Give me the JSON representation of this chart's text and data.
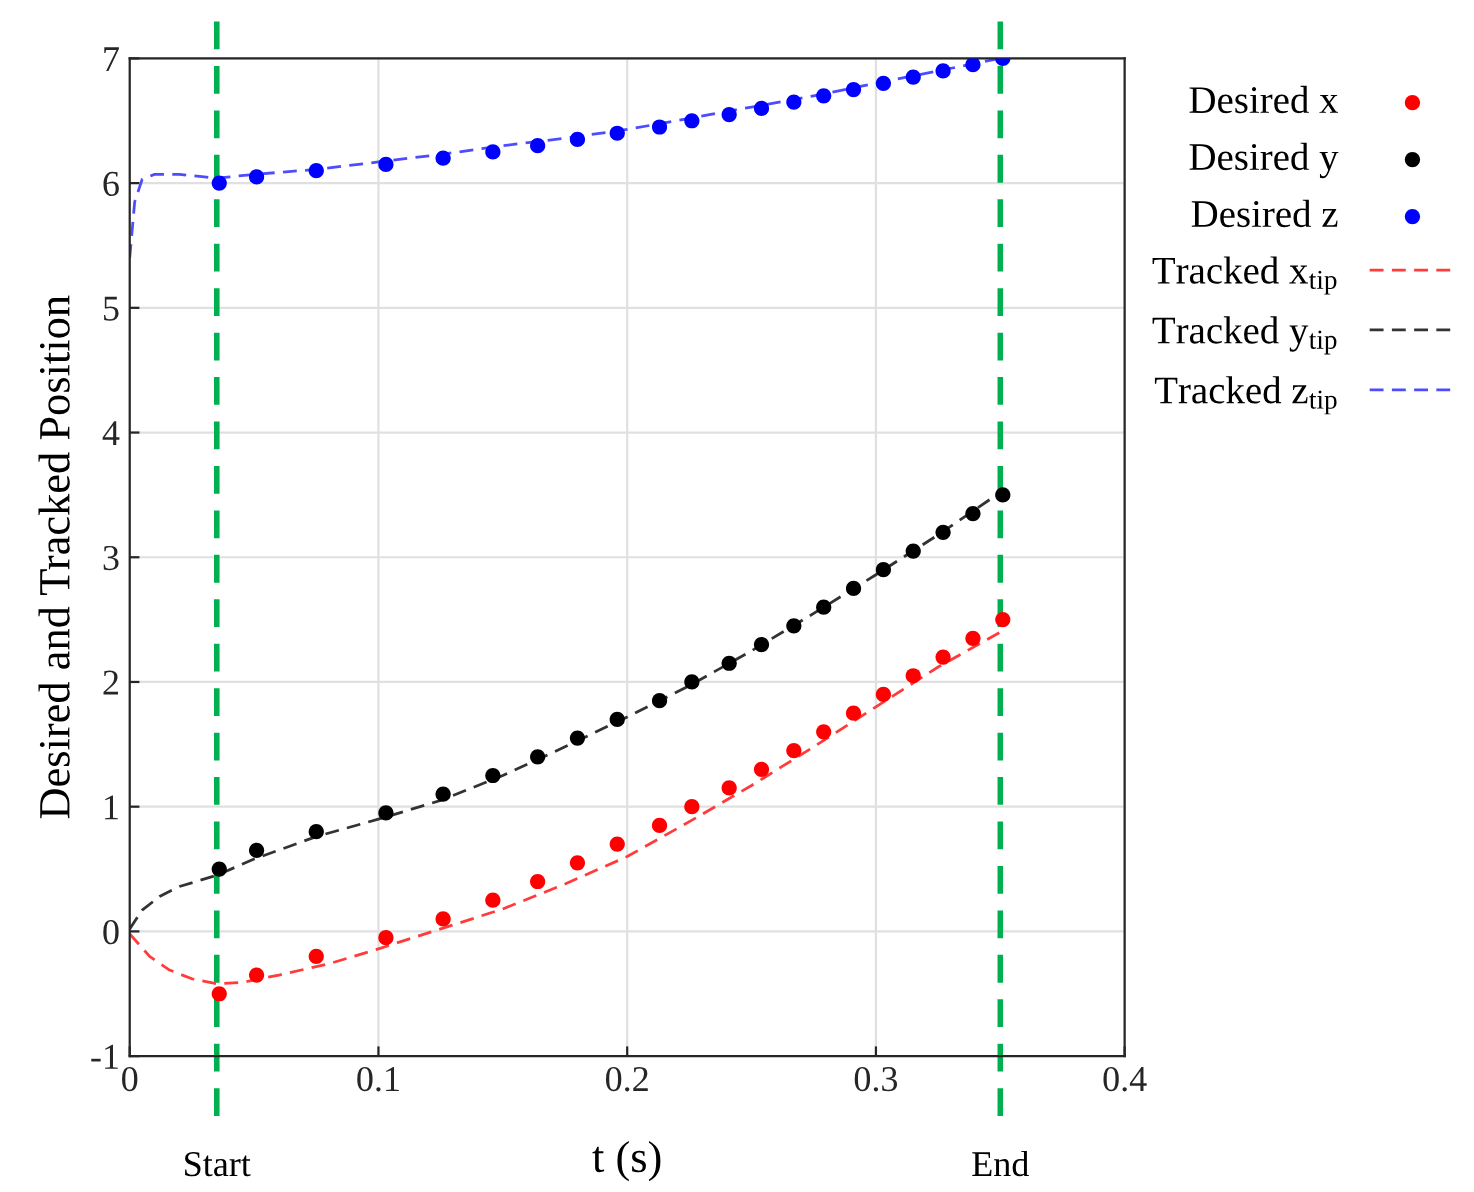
{
  "chart_data": {
    "type": "line",
    "xlabel": "t (s)",
    "ylabel": "Desired and Tracked Position",
    "xlim": [
      0,
      0.4
    ],
    "xticks": [
      0,
      0.1,
      0.2,
      0.3,
      0.4
    ],
    "ylim": [
      -1,
      7
    ],
    "yticks": [
      -1,
      0,
      1,
      2,
      3,
      4,
      5,
      6,
      7
    ],
    "grid": true,
    "legend": "right",
    "ref_lines": [
      {
        "axis": "x",
        "value": 0.035,
        "label": "Start",
        "color": "#00b050",
        "line_style": "dashed"
      },
      {
        "axis": "x",
        "value": 0.35,
        "label": "End",
        "color": "#00b050",
        "line_style": "dashed"
      }
    ],
    "series": [
      {
        "name": "Desired x",
        "type": "scatter",
        "marker": "circle",
        "color": "#ff0000",
        "x": [
          0.036,
          0.051,
          0.075,
          0.103,
          0.126,
          0.146,
          0.164,
          0.18,
          0.196,
          0.213,
          0.226,
          0.241,
          0.254,
          0.267,
          0.279,
          0.291,
          0.303,
          0.315,
          0.327,
          0.339,
          0.351
        ],
        "values": [
          -0.5,
          -0.35,
          -0.2,
          -0.05,
          0.1,
          0.25,
          0.4,
          0.55,
          0.7,
          0.85,
          1.0,
          1.15,
          1.3,
          1.45,
          1.6,
          1.75,
          1.9,
          2.05,
          2.2,
          2.35,
          2.5
        ]
      },
      {
        "name": "Desired y",
        "type": "scatter",
        "marker": "circle",
        "color": "#000000",
        "x": [
          0.036,
          0.051,
          0.075,
          0.103,
          0.126,
          0.146,
          0.164,
          0.18,
          0.196,
          0.213,
          0.226,
          0.241,
          0.254,
          0.267,
          0.279,
          0.291,
          0.303,
          0.315,
          0.327,
          0.339,
          0.351
        ],
        "values": [
          0.5,
          0.65,
          0.8,
          0.95,
          1.1,
          1.25,
          1.4,
          1.55,
          1.7,
          1.85,
          2.0,
          2.15,
          2.3,
          2.45,
          2.6,
          2.75,
          2.9,
          3.05,
          3.2,
          3.35,
          3.5
        ]
      },
      {
        "name": "Desired z",
        "type": "scatter",
        "marker": "circle",
        "color": "#0000ff",
        "x": [
          0.036,
          0.051,
          0.075,
          0.103,
          0.126,
          0.146,
          0.164,
          0.18,
          0.196,
          0.213,
          0.226,
          0.241,
          0.254,
          0.267,
          0.279,
          0.291,
          0.303,
          0.315,
          0.327,
          0.339,
          0.351
        ],
        "values": [
          6.0,
          6.05,
          6.1,
          6.15,
          6.2,
          6.25,
          6.3,
          6.35,
          6.4,
          6.45,
          6.5,
          6.55,
          6.6,
          6.65,
          6.7,
          6.75,
          6.8,
          6.85,
          6.9,
          6.95,
          7.0
        ]
      },
      {
        "name": "Tracked x$_{tip}$",
        "line_style": "dashed",
        "marker": "none",
        "color": "#ff3b3b",
        "x": [
          0,
          0.008,
          0.016,
          0.025,
          0.035,
          0.045,
          0.06,
          0.08,
          0.1,
          0.125,
          0.15,
          0.175,
          0.2,
          0.225,
          0.25,
          0.275,
          0.3,
          0.325,
          0.35
        ],
        "values": [
          -0.02,
          -0.2,
          -0.31,
          -0.38,
          -0.42,
          -0.41,
          -0.35,
          -0.26,
          -0.14,
          0.02,
          0.18,
          0.38,
          0.6,
          0.88,
          1.17,
          1.48,
          1.8,
          2.12,
          2.4
        ]
      },
      {
        "name": "Tracked y$_{tip}$",
        "line_style": "dashed",
        "marker": "none",
        "color": "#333333",
        "x": [
          0,
          0.005,
          0.012,
          0.02,
          0.035,
          0.05,
          0.075,
          0.1,
          0.125,
          0.15,
          0.175,
          0.2,
          0.225,
          0.25,
          0.275,
          0.3,
          0.325,
          0.35
        ],
        "values": [
          0.02,
          0.17,
          0.28,
          0.36,
          0.45,
          0.58,
          0.76,
          0.9,
          1.05,
          1.25,
          1.48,
          1.72,
          1.97,
          2.25,
          2.55,
          2.86,
          3.18,
          3.52
        ]
      },
      {
        "name": "Tracked z$_{tip}$",
        "line_style": "dashed",
        "marker": "none",
        "color": "#4d4dff",
        "x": [
          0,
          0.002,
          0.005,
          0.01,
          0.02,
          0.03,
          0.035,
          0.05,
          0.075,
          0.1,
          0.125,
          0.15,
          0.175,
          0.2,
          0.225,
          0.25,
          0.275,
          0.3,
          0.325,
          0.35
        ],
        "values": [
          5.4,
          5.85,
          6.03,
          6.07,
          6.07,
          6.05,
          6.04,
          6.07,
          6.11,
          6.17,
          6.23,
          6.3,
          6.36,
          6.43,
          6.52,
          6.61,
          6.7,
          6.8,
          6.9,
          7.0
        ]
      }
    ]
  }
}
